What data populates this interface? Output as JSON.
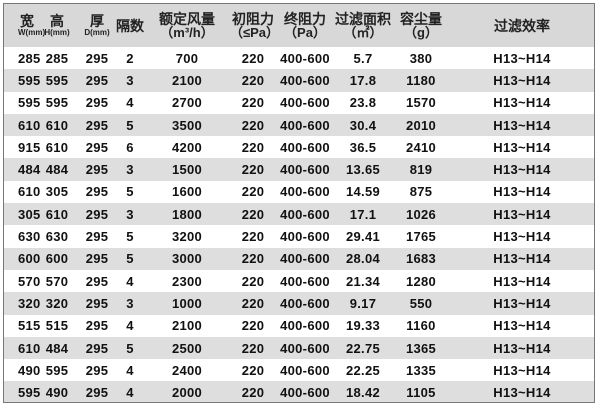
{
  "headers": [
    {
      "label": "宽",
      "sub": "W(mm)"
    },
    {
      "label": "高",
      "sub": "H(mm)"
    },
    {
      "label": "厚",
      "sub": "D(mm)"
    },
    {
      "label": "隔数"
    },
    {
      "label": "额定风量",
      "unit": "（m³/h）"
    },
    {
      "label": "初阻力",
      "unit": "（≤Pa）"
    },
    {
      "label": "终阻力",
      "unit": "（Pa）"
    },
    {
      "label": "过滤面积",
      "unit": "（㎡）"
    },
    {
      "label": "容尘量",
      "unit": "（g）"
    },
    {
      "label": "过滤效率"
    }
  ],
  "rows": [
    [
      "285",
      "285",
      "295",
      "2",
      "700",
      "220",
      "400-600",
      "5.7",
      "380",
      "H13~H14"
    ],
    [
      "595",
      "595",
      "295",
      "3",
      "2100",
      "220",
      "400-600",
      "17.8",
      "1180",
      "H13~H14"
    ],
    [
      "595",
      "595",
      "295",
      "4",
      "2700",
      "220",
      "400-600",
      "23.8",
      "1570",
      "H13~H14"
    ],
    [
      "610",
      "610",
      "295",
      "5",
      "3500",
      "220",
      "400-600",
      "30.4",
      "2010",
      "H13~H14"
    ],
    [
      "915",
      "610",
      "295",
      "6",
      "4200",
      "220",
      "400-600",
      "36.5",
      "2410",
      "H13~H14"
    ],
    [
      "484",
      "484",
      "295",
      "3",
      "1500",
      "220",
      "400-600",
      "13.65",
      "819",
      "H13~H14"
    ],
    [
      "610",
      "305",
      "295",
      "5",
      "1600",
      "220",
      "400-600",
      "14.59",
      "875",
      "H13~H14"
    ],
    [
      "305",
      "610",
      "295",
      "3",
      "1800",
      "220",
      "400-600",
      "17.1",
      "1026",
      "H13~H14"
    ],
    [
      "630",
      "630",
      "295",
      "5",
      "3200",
      "220",
      "400-600",
      "29.41",
      "1765",
      "H13~H14"
    ],
    [
      "600",
      "600",
      "295",
      "5",
      "3000",
      "220",
      "400-600",
      "28.04",
      "1683",
      "H13~H14"
    ],
    [
      "570",
      "570",
      "295",
      "4",
      "2300",
      "220",
      "400-600",
      "21.34",
      "1280",
      "H13~H14"
    ],
    [
      "320",
      "320",
      "295",
      "3",
      "1000",
      "220",
      "400-600",
      "9.17",
      "550",
      "H13~H14"
    ],
    [
      "515",
      "515",
      "295",
      "4",
      "2100",
      "220",
      "400-600",
      "19.33",
      "1160",
      "H13~H14"
    ],
    [
      "610",
      "484",
      "295",
      "5",
      "2500",
      "220",
      "400-600",
      "22.75",
      "1365",
      "H13~H14"
    ],
    [
      "490",
      "595",
      "295",
      "4",
      "2400",
      "220",
      "400-600",
      "22.25",
      "1335",
      "H13~H14"
    ],
    [
      "595",
      "490",
      "295",
      "4",
      "2000",
      "220",
      "400-600",
      "18.42",
      "1105",
      "H13~H14"
    ]
  ]
}
